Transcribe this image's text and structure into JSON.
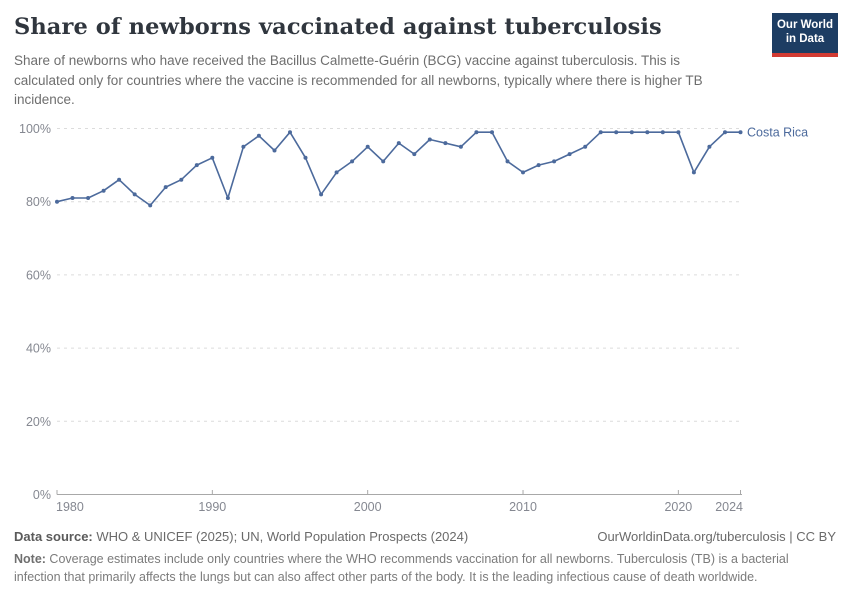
{
  "header": {
    "title": "Share of newborns vaccinated against tuberculosis",
    "subtitle": "Share of newborns who have received the Bacillus Calmette-Guérin (BCG) vaccine against tuberculosis. This is calculated only for countries where the vaccine is recommended for all newborns, typically where there is higher TB incidence.",
    "logo": {
      "line1": "Our World",
      "line2": "in Data",
      "bg_color": "#1d3d63",
      "accent_color": "#d23b33"
    }
  },
  "chart_data": {
    "type": "line",
    "title": "Share of newborns vaccinated against tuberculosis",
    "x": [
      1980,
      1981,
      1982,
      1983,
      1984,
      1985,
      1986,
      1987,
      1988,
      1989,
      1990,
      1991,
      1992,
      1993,
      1994,
      1995,
      1996,
      1997,
      1998,
      1999,
      2000,
      2001,
      2002,
      2003,
      2004,
      2005,
      2006,
      2007,
      2008,
      2009,
      2010,
      2011,
      2012,
      2013,
      2014,
      2015,
      2016,
      2017,
      2018,
      2019,
      2020,
      2021,
      2022,
      2023,
      2024
    ],
    "series": [
      {
        "name": "Costa Rica",
        "color": "#4c6a9c",
        "values": [
          80,
          81,
          81,
          83,
          86,
          82,
          79,
          84,
          86,
          90,
          92,
          81,
          95,
          98,
          94,
          99,
          92,
          82,
          88,
          91,
          95,
          91,
          96,
          93,
          97,
          96,
          95,
          99,
          99,
          91,
          88,
          90,
          91,
          93,
          95,
          99,
          99,
          99,
          99,
          99,
          99,
          88,
          95,
          99,
          99
        ]
      }
    ],
    "xlabel": "",
    "ylabel": "",
    "xlim": [
      1980,
      2024
    ],
    "ylim": [
      0,
      100
    ],
    "x_ticks": [
      1980,
      1990,
      2000,
      2010,
      2020,
      2024
    ],
    "y_ticks": [
      "0%",
      "20%",
      "40%",
      "60%",
      "80%",
      "100%"
    ],
    "grid": "horizontal-dashed",
    "legend_position": "line-end-label",
    "colors": {
      "line": "#4c6a9c",
      "gridline": "#dcdcdc",
      "axis": "#a8a8a8",
      "tick_label": "#858891"
    }
  },
  "footer": {
    "datasource_label": "Data source:",
    "datasource_text": " WHO & UNICEF (2025); UN, World Population Prospects (2024)",
    "rights_text": "OurWorldinData.org/tuberculosis | CC BY",
    "note_label": "Note:",
    "note_text": " Coverage estimates include only countries where the WHO recommends vaccination for all newborns. Tuberculosis (TB) is a bacterial infection that primarily affects the lungs but can also affect other parts of the body. It is the leading infectious cause of death worldwide."
  }
}
